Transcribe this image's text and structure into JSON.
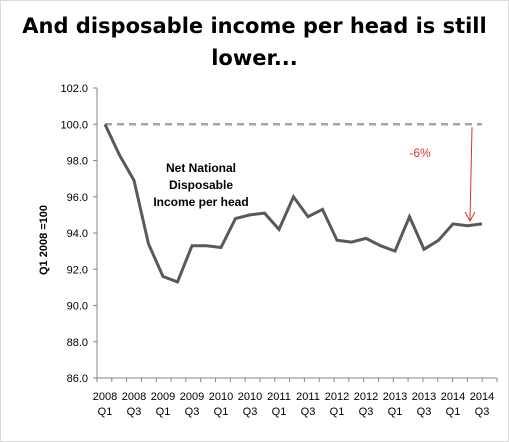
{
  "chart_data": {
    "type": "line",
    "title_lines": [
      "And disposable income per head is still",
      "lower..."
    ],
    "ylabel": "Q1 2008 =100",
    "ylim": [
      86.0,
      102.0
    ],
    "yticks": [
      "86.0",
      "88.0",
      "90.0",
      "92.0",
      "94.0",
      "96.0",
      "98.0",
      "100.0",
      "102.0"
    ],
    "x": [
      "2008 Q1",
      "2008 Q2",
      "2008 Q3",
      "2008 Q4",
      "2009 Q1",
      "2009 Q2",
      "2009 Q3",
      "2009 Q4",
      "2010 Q1",
      "2010 Q2",
      "2010 Q3",
      "2010 Q4",
      "2011 Q1",
      "2011 Q2",
      "2011 Q3",
      "2011 Q4",
      "2012 Q1",
      "2012 Q2",
      "2012 Q3",
      "2012 Q4",
      "2013 Q1",
      "2013 Q2",
      "2013 Q3",
      "2013 Q4",
      "2014 Q1",
      "2014 Q2",
      "2014 Q3"
    ],
    "xtick_labels": [
      {
        "year": "2008",
        "quarter": "Q1"
      },
      {
        "year": "2008",
        "quarter": "Q3"
      },
      {
        "year": "2009",
        "quarter": "Q1"
      },
      {
        "year": "2009",
        "quarter": "Q3"
      },
      {
        "year": "2010",
        "quarter": "Q1"
      },
      {
        "year": "2010",
        "quarter": "Q3"
      },
      {
        "year": "2011",
        "quarter": "Q1"
      },
      {
        "year": "2011",
        "quarter": "Q3"
      },
      {
        "year": "2012",
        "quarter": "Q1"
      },
      {
        "year": "2012",
        "quarter": "Q3"
      },
      {
        "year": "2013",
        "quarter": "Q1"
      },
      {
        "year": "2013",
        "quarter": "Q3"
      },
      {
        "year": "2014",
        "quarter": "Q1"
      },
      {
        "year": "2014",
        "quarter": "Q3"
      }
    ],
    "series": [
      {
        "values": [
          100.0,
          98.3,
          96.9,
          93.4,
          91.6,
          91.3,
          93.3,
          93.3,
          93.2,
          94.8,
          95.0,
          95.1,
          94.2,
          96.0,
          94.9,
          95.3,
          93.6,
          93.5,
          93.7,
          93.3,
          93.0,
          94.9,
          93.1,
          93.6,
          94.5,
          94.4,
          94.5
        ],
        "color": "#595959"
      }
    ],
    "reference_line": {
      "value": 100.0,
      "color": "#a6a6a6",
      "style": "dashed"
    },
    "annotations": {
      "series_label_lines": [
        "Net National",
        "Disposable",
        "Income per head"
      ],
      "change_label": "-6%",
      "change_color": "#e03030"
    },
    "grid": false,
    "legend": "none"
  }
}
